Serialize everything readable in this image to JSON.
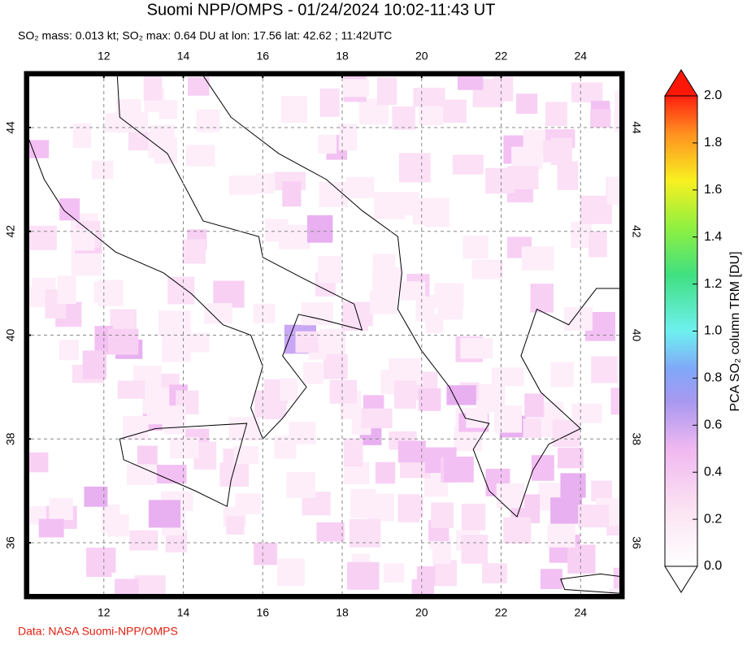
{
  "title": "Suomi NPP/OMPS - 01/24/2024 10:02-11:43 UT",
  "subtitle": "SO₂ mass: 0.013 kt; SO₂ max: 0.64 DU at lon: 17.56 lat: 42.62 ; 11:42UTC",
  "map": {
    "lon_range": [
      10,
      25.1
    ],
    "lat_range": [
      34.92,
      45.08
    ],
    "xticks": [
      12,
      14,
      16,
      18,
      20,
      22,
      24
    ],
    "yticks": [
      36,
      38,
      40,
      42,
      44
    ]
  },
  "colorbar": {
    "label": "PCA SO₂ column TRM [DU]",
    "range": [
      0,
      2
    ],
    "ticks": [
      {
        "value": 0,
        "label": "0.0"
      },
      {
        "value": 0.2,
        "label": "0.2"
      },
      {
        "value": 0.4,
        "label": "0.4"
      },
      {
        "value": 0.6,
        "label": "0.6"
      },
      {
        "value": 0.8,
        "label": "0.8"
      },
      {
        "value": 1,
        "label": "1.0"
      },
      {
        "value": 1.2,
        "label": "1.2"
      },
      {
        "value": 1.4,
        "label": "1.4"
      },
      {
        "value": 1.6,
        "label": "1.6"
      },
      {
        "value": 1.8,
        "label": "1.8"
      },
      {
        "value": 2,
        "label": "2.0"
      }
    ]
  },
  "credit": "Data: NASA Suomi-NPP/OMPS"
}
